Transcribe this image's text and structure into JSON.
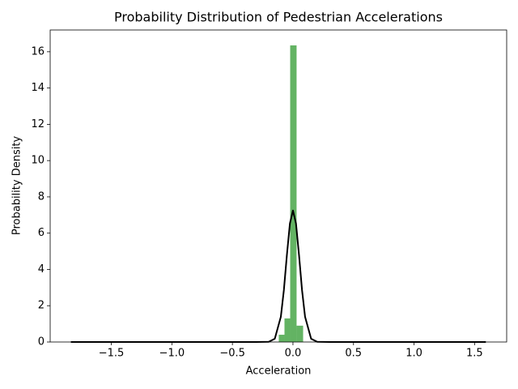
{
  "chart_data": {
    "type": "histogram",
    "title": "Probability Distribution of Pedestrian Accelerations",
    "xlabel": "Acceleration",
    "ylabel": "Probability Density",
    "bins": [
      -0.117,
      -0.07,
      -0.023,
      0.03,
      0.084
    ],
    "values": [
      0.4,
      1.3,
      16.35,
      0.9
    ],
    "color": "#63b363",
    "fit_line": {
      "x": [
        -1.834,
        -0.3,
        -0.2,
        -0.15,
        -0.1,
        -0.075,
        -0.05,
        -0.025,
        0,
        0.025,
        0.05,
        0.075,
        0.1,
        0.15,
        0.2,
        0.3,
        1.593
      ],
      "values": [
        0,
        0,
        0.01,
        0.18,
        1.39,
        2.86,
        4.8,
        6.54,
        7.25,
        6.54,
        4.8,
        2.86,
        1.39,
        0.18,
        0.01,
        0,
        0
      ],
      "color": "#000000"
    },
    "xlim": [
      -2.005,
      1.765
    ],
    "ylim": [
      0,
      17.2
    ],
    "xticks": [
      {
        "value": -1.5,
        "label": "−1.5"
      },
      {
        "value": -1.0,
        "label": "−1.0"
      },
      {
        "value": -0.5,
        "label": "−0.5"
      },
      {
        "value": 0,
        "label": "0.0"
      },
      {
        "value": 0.5,
        "label": "0.5"
      },
      {
        "value": 1.0,
        "label": "1.0"
      },
      {
        "value": 1.5,
        "label": "1.5"
      }
    ],
    "yticks": [
      0,
      2,
      4,
      6,
      8,
      10,
      12,
      14,
      16
    ]
  }
}
